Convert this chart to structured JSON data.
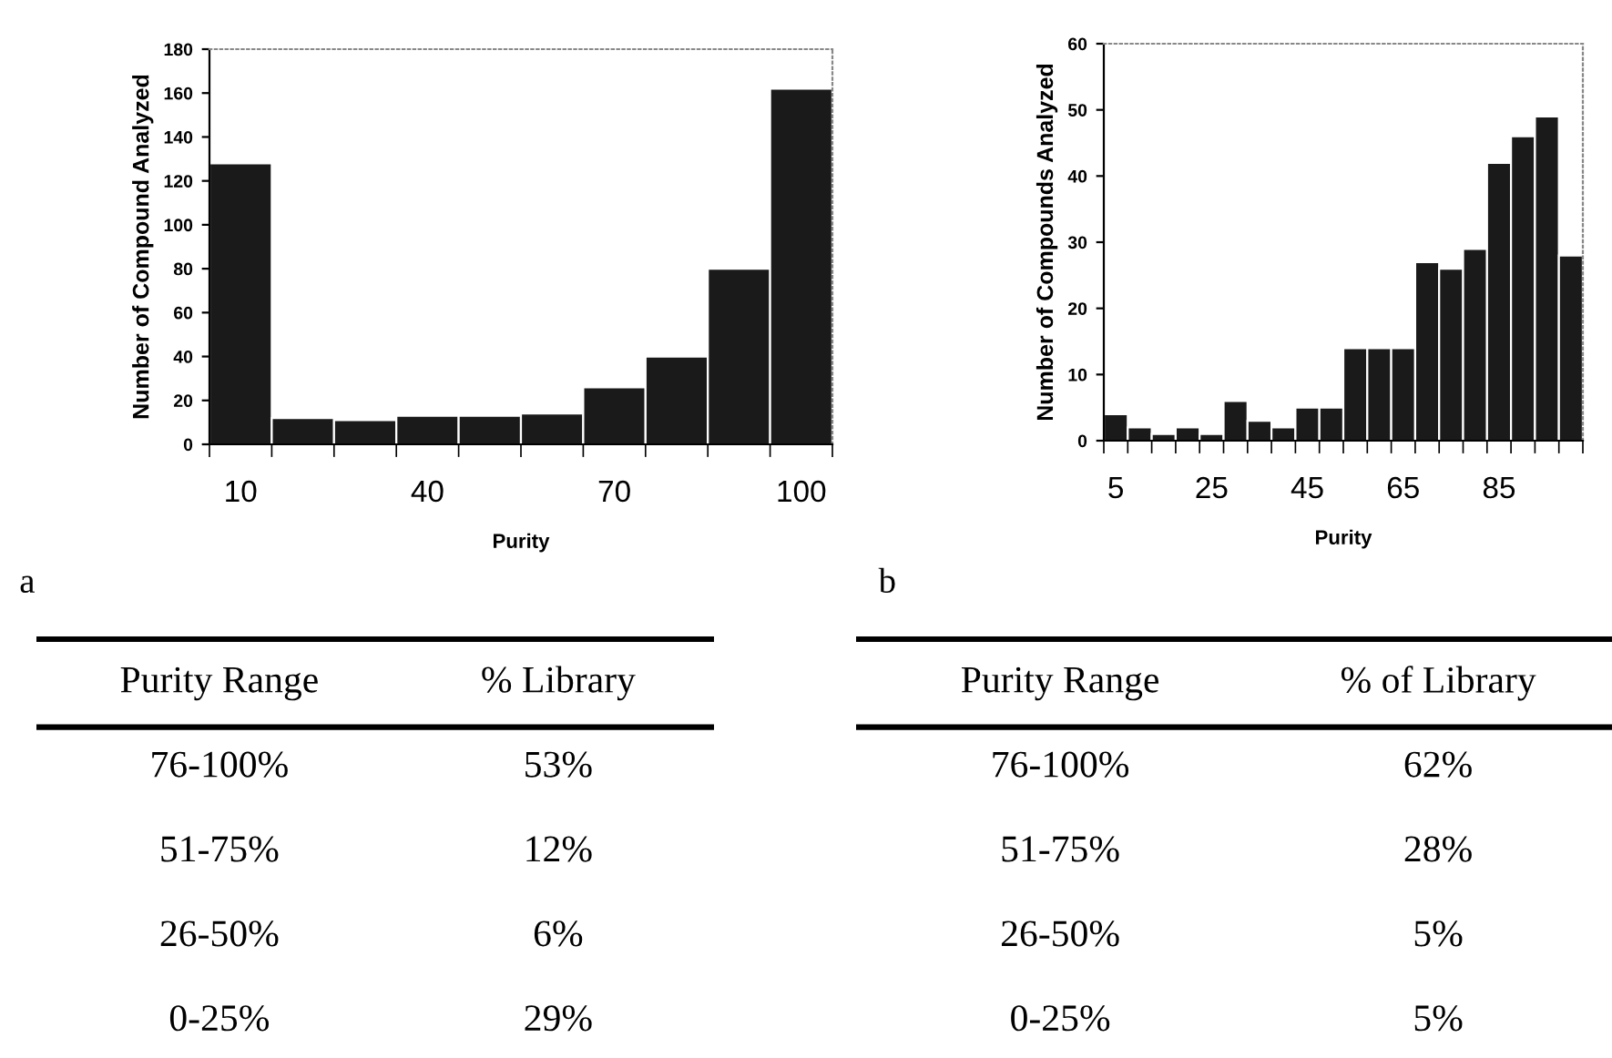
{
  "chart_data": [
    {
      "type": "bar",
      "xlabel": "Purity",
      "ylabel": "Number of Compound Analyzed",
      "annotations": [
        "a"
      ],
      "color": "#1a1a1a",
      "categories": [
        "10",
        null,
        null,
        "40",
        null,
        null,
        "70",
        null,
        null,
        "100"
      ],
      "values": [
        128,
        12,
        11,
        13,
        13,
        14,
        26,
        40,
        80,
        162
      ],
      "ylim": [
        0,
        180
      ],
      "yticks": [
        0,
        20,
        40,
        60,
        80,
        100,
        120,
        140,
        160,
        180
      ],
      "grid": false,
      "legend": false
    },
    {
      "type": "bar",
      "xlabel": "Purity",
      "ylabel": "Number of Compounds Analyzed",
      "annotations": [
        "b"
      ],
      "color": "#1a1a1a",
      "categories": [
        "5",
        null,
        null,
        null,
        "25",
        null,
        null,
        null,
        "45",
        null,
        null,
        null,
        "65",
        null,
        null,
        null,
        "85",
        null,
        null,
        null
      ],
      "values": [
        4,
        2,
        1,
        2,
        1,
        6,
        3,
        2,
        5,
        5,
        14,
        14,
        14,
        27,
        26,
        29,
        42,
        46,
        49,
        28
      ],
      "ylim": [
        0,
        60
      ],
      "yticks": [
        0,
        10,
        20,
        30,
        40,
        50,
        60
      ],
      "grid": false,
      "legend": false
    },
    {
      "type": "other",
      "annotations": [
        "Purity Range",
        "% Library",
        "76-100%",
        "53%",
        "51-75%",
        "12%",
        "26-50%",
        "6%",
        "0-25%",
        "29%"
      ]
    },
    {
      "type": "other",
      "annotations": [
        "Purity Range",
        "% of Library",
        "76-100%",
        "62%",
        "51-75%",
        "28%",
        "26-50%",
        "5%",
        "0-25%",
        "5%"
      ]
    }
  ]
}
